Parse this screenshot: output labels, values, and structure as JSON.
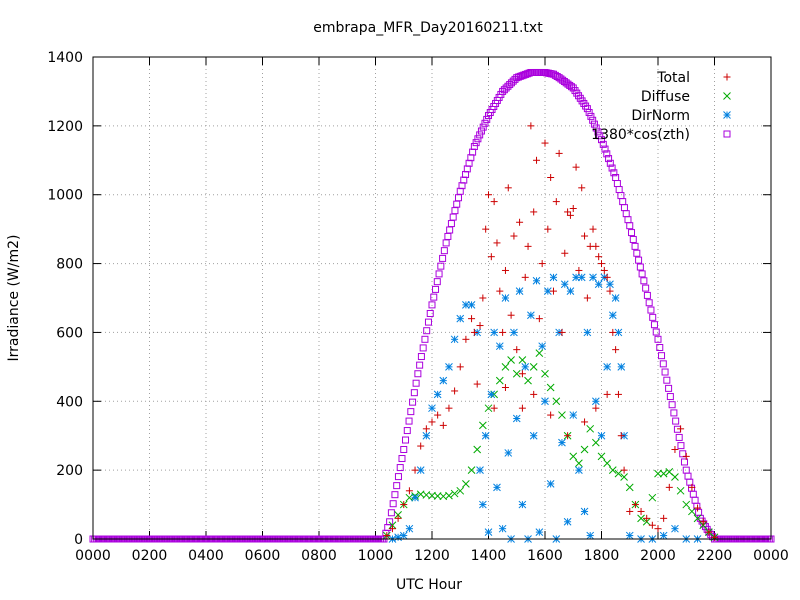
{
  "chart_data": {
    "type": "scatter",
    "title": "embrapa_MFR_Day20160211.txt",
    "xlabel": "UTC Hour",
    "ylabel": "Irradiance (W/m2)",
    "xlim": [
      0,
      24
    ],
    "ylim": [
      0,
      1400
    ],
    "x_ticks": [
      {
        "value": 0,
        "label": "0000"
      },
      {
        "value": 2,
        "label": "0200"
      },
      {
        "value": 4,
        "label": "0400"
      },
      {
        "value": 6,
        "label": "0600"
      },
      {
        "value": 8,
        "label": "0800"
      },
      {
        "value": 10,
        "label": "1000"
      },
      {
        "value": 12,
        "label": "1200"
      },
      {
        "value": 14,
        "label": "1400"
      },
      {
        "value": 16,
        "label": "1600"
      },
      {
        "value": 18,
        "label": "1800"
      },
      {
        "value": 20,
        "label": "2000"
      },
      {
        "value": 22,
        "label": "2200"
      },
      {
        "value": 24,
        "label": "0000"
      }
    ],
    "y_ticks": [
      {
        "value": 0,
        "label": "0"
      },
      {
        "value": 200,
        "label": "200"
      },
      {
        "value": 400,
        "label": "400"
      },
      {
        "value": 600,
        "label": "600"
      },
      {
        "value": 800,
        "label": "800"
      },
      {
        "value": 1000,
        "label": "1000"
      },
      {
        "value": 1200,
        "label": "1200"
      },
      {
        "value": 1400,
        "label": "1400"
      }
    ],
    "grid": true,
    "legend_position": "top-right",
    "series": [
      {
        "name": "Total",
        "marker": "plus",
        "color": "#cc0000",
        "points": [
          [
            10.4,
            10
          ],
          [
            10.6,
            30
          ],
          [
            10.8,
            60
          ],
          [
            11.0,
            100
          ],
          [
            11.2,
            140
          ],
          [
            11.4,
            200
          ],
          [
            11.6,
            270
          ],
          [
            11.8,
            320
          ],
          [
            12.0,
            340
          ],
          [
            12.2,
            360
          ],
          [
            12.4,
            330
          ],
          [
            12.6,
            380
          ],
          [
            12.8,
            430
          ],
          [
            13.0,
            500
          ],
          [
            13.2,
            580
          ],
          [
            13.4,
            640
          ],
          [
            13.5,
            600
          ],
          [
            13.6,
            450
          ],
          [
            13.7,
            620
          ],
          [
            13.8,
            700
          ],
          [
            13.9,
            900
          ],
          [
            14.0,
            1000
          ],
          [
            14.1,
            820
          ],
          [
            14.2,
            980
          ],
          [
            14.3,
            860
          ],
          [
            14.4,
            720
          ],
          [
            14.5,
            600
          ],
          [
            14.6,
            780
          ],
          [
            14.7,
            1020
          ],
          [
            14.8,
            650
          ],
          [
            14.9,
            880
          ],
          [
            15.0,
            550
          ],
          [
            15.1,
            920
          ],
          [
            15.2,
            480
          ],
          [
            15.3,
            760
          ],
          [
            15.4,
            850
          ],
          [
            15.5,
            1200
          ],
          [
            15.6,
            950
          ],
          [
            15.7,
            1100
          ],
          [
            15.8,
            640
          ],
          [
            15.9,
            800
          ],
          [
            16.0,
            1150
          ],
          [
            16.1,
            900
          ],
          [
            16.2,
            1050
          ],
          [
            16.3,
            720
          ],
          [
            16.4,
            980
          ],
          [
            16.5,
            1120
          ],
          [
            16.6,
            600
          ],
          [
            16.7,
            830
          ],
          [
            16.8,
            950
          ],
          [
            16.9,
            940
          ],
          [
            17.0,
            960
          ],
          [
            17.1,
            1080
          ],
          [
            17.2,
            780
          ],
          [
            17.3,
            1020
          ],
          [
            17.4,
            880
          ],
          [
            17.5,
            700
          ],
          [
            17.6,
            850
          ],
          [
            17.7,
            900
          ],
          [
            17.8,
            850
          ],
          [
            17.9,
            820
          ],
          [
            18.0,
            800
          ],
          [
            18.1,
            780
          ],
          [
            18.2,
            760
          ],
          [
            18.3,
            720
          ],
          [
            18.4,
            600
          ],
          [
            18.5,
            550
          ],
          [
            18.6,
            420
          ],
          [
            18.7,
            300
          ],
          [
            18.8,
            200
          ],
          [
            19.0,
            80
          ],
          [
            19.2,
            100
          ],
          [
            19.4,
            80
          ],
          [
            19.6,
            60
          ],
          [
            19.8,
            40
          ],
          [
            20.0,
            30
          ],
          [
            20.2,
            60
          ],
          [
            20.4,
            150
          ],
          [
            20.6,
            260
          ],
          [
            20.8,
            320
          ],
          [
            21.0,
            240
          ],
          [
            21.2,
            150
          ],
          [
            21.4,
            90
          ],
          [
            21.6,
            50
          ],
          [
            21.8,
            20
          ],
          [
            22.0,
            5
          ],
          [
            14.2,
            380
          ],
          [
            14.6,
            440
          ],
          [
            15.2,
            380
          ],
          [
            15.6,
            420
          ],
          [
            16.2,
            360
          ],
          [
            16.8,
            300
          ],
          [
            17.4,
            340
          ],
          [
            17.8,
            380
          ],
          [
            18.2,
            420
          ]
        ]
      },
      {
        "name": "Diffuse",
        "marker": "cross",
        "color": "#00aa00",
        "points": [
          [
            10.4,
            10
          ],
          [
            10.6,
            40
          ],
          [
            10.8,
            70
          ],
          [
            11.0,
            100
          ],
          [
            11.2,
            120
          ],
          [
            11.4,
            125
          ],
          [
            11.6,
            130
          ],
          [
            11.8,
            128
          ],
          [
            12.0,
            126
          ],
          [
            12.2,
            125
          ],
          [
            12.4,
            124
          ],
          [
            12.6,
            126
          ],
          [
            12.8,
            132
          ],
          [
            13.0,
            140
          ],
          [
            13.2,
            160
          ],
          [
            13.4,
            200
          ],
          [
            13.6,
            260
          ],
          [
            13.8,
            330
          ],
          [
            14.0,
            380
          ],
          [
            14.2,
            420
          ],
          [
            14.4,
            460
          ],
          [
            14.6,
            500
          ],
          [
            14.8,
            520
          ],
          [
            15.0,
            480
          ],
          [
            15.2,
            520
          ],
          [
            15.4,
            460
          ],
          [
            15.6,
            500
          ],
          [
            15.8,
            540
          ],
          [
            16.0,
            480
          ],
          [
            16.2,
            440
          ],
          [
            16.4,
            400
          ],
          [
            16.6,
            360
          ],
          [
            16.8,
            300
          ],
          [
            17.0,
            240
          ],
          [
            17.2,
            220
          ],
          [
            17.4,
            260
          ],
          [
            17.6,
            320
          ],
          [
            17.8,
            280
          ],
          [
            18.0,
            240
          ],
          [
            18.2,
            220
          ],
          [
            18.4,
            200
          ],
          [
            18.6,
            190
          ],
          [
            18.8,
            180
          ],
          [
            19.0,
            150
          ],
          [
            19.2,
            100
          ],
          [
            19.4,
            60
          ],
          [
            19.6,
            50
          ],
          [
            19.8,
            120
          ],
          [
            20.0,
            190
          ],
          [
            20.2,
            190
          ],
          [
            20.4,
            195
          ],
          [
            20.6,
            180
          ],
          [
            20.8,
            140
          ],
          [
            21.0,
            100
          ],
          [
            21.2,
            80
          ],
          [
            21.4,
            60
          ],
          [
            21.6,
            40
          ],
          [
            21.8,
            20
          ],
          [
            22.0,
            5
          ]
        ]
      },
      {
        "name": "DirNorm",
        "marker": "star",
        "color": "#0080e0",
        "points": [
          [
            10.6,
            0
          ],
          [
            10.8,
            5
          ],
          [
            11.0,
            10
          ],
          [
            11.2,
            30
          ],
          [
            11.4,
            120
          ],
          [
            11.6,
            200
          ],
          [
            11.8,
            300
          ],
          [
            12.0,
            380
          ],
          [
            12.2,
            420
          ],
          [
            12.4,
            460
          ],
          [
            12.6,
            500
          ],
          [
            12.8,
            580
          ],
          [
            13.0,
            640
          ],
          [
            13.2,
            680
          ],
          [
            13.4,
            680
          ],
          [
            13.6,
            600
          ],
          [
            13.7,
            200
          ],
          [
            13.8,
            100
          ],
          [
            13.9,
            300
          ],
          [
            14.0,
            20
          ],
          [
            14.1,
            420
          ],
          [
            14.2,
            600
          ],
          [
            14.3,
            150
          ],
          [
            14.4,
            560
          ],
          [
            14.5,
            30
          ],
          [
            14.6,
            700
          ],
          [
            14.7,
            250
          ],
          [
            14.8,
            0
          ],
          [
            14.9,
            600
          ],
          [
            15.0,
            350
          ],
          [
            15.1,
            720
          ],
          [
            15.2,
            100
          ],
          [
            15.3,
            500
          ],
          [
            15.4,
            0
          ],
          [
            15.5,
            650
          ],
          [
            15.6,
            300
          ],
          [
            15.7,
            750
          ],
          [
            15.8,
            20
          ],
          [
            15.9,
            560
          ],
          [
            16.0,
            400
          ],
          [
            16.1,
            720
          ],
          [
            16.2,
            160
          ],
          [
            16.3,
            760
          ],
          [
            16.4,
            0
          ],
          [
            16.5,
            600
          ],
          [
            16.6,
            280
          ],
          [
            16.7,
            740
          ],
          [
            16.8,
            50
          ],
          [
            16.9,
            720
          ],
          [
            17.0,
            360
          ],
          [
            17.1,
            760
          ],
          [
            17.2,
            200
          ],
          [
            17.3,
            760
          ],
          [
            17.4,
            80
          ],
          [
            17.5,
            600
          ],
          [
            17.6,
            10
          ],
          [
            17.7,
            760
          ],
          [
            17.8,
            400
          ],
          [
            17.9,
            740
          ],
          [
            18.0,
            300
          ],
          [
            18.1,
            760
          ],
          [
            18.2,
            500
          ],
          [
            18.3,
            740
          ],
          [
            18.4,
            650
          ],
          [
            18.5,
            700
          ],
          [
            18.6,
            600
          ],
          [
            18.7,
            500
          ],
          [
            18.8,
            300
          ],
          [
            19.0,
            10
          ],
          [
            19.4,
            0
          ],
          [
            19.8,
            0
          ],
          [
            20.2,
            10
          ],
          [
            20.6,
            30
          ],
          [
            21.0,
            0
          ],
          [
            21.4,
            0
          ]
        ]
      },
      {
        "name": "1380*cos(zth)",
        "marker": "square",
        "color": "#aa00dd",
        "points": [
          [
            0,
            0
          ],
          [
            1,
            0
          ],
          [
            2,
            0
          ],
          [
            3,
            0
          ],
          [
            4,
            0
          ],
          [
            5,
            0
          ],
          [
            6,
            0
          ],
          [
            7,
            0
          ],
          [
            8,
            0
          ],
          [
            9,
            0
          ],
          [
            10,
            0
          ],
          [
            10.3,
            0
          ],
          [
            10.5,
            50
          ],
          [
            11.0,
            260
          ],
          [
            11.5,
            480
          ],
          [
            12.0,
            680
          ],
          [
            12.5,
            860
          ],
          [
            13.0,
            1010
          ],
          [
            13.5,
            1140
          ],
          [
            14.0,
            1230
          ],
          [
            14.5,
            1300
          ],
          [
            15.0,
            1340
          ],
          [
            15.5,
            1355
          ],
          [
            16.0,
            1355
          ],
          [
            16.3,
            1350
          ],
          [
            16.5,
            1340
          ],
          [
            17.0,
            1310
          ],
          [
            17.5,
            1250
          ],
          [
            18.0,
            1160
          ],
          [
            18.5,
            1050
          ],
          [
            19.0,
            910
          ],
          [
            19.5,
            750
          ],
          [
            20.0,
            580
          ],
          [
            20.5,
            390
          ],
          [
            21.0,
            200
          ],
          [
            21.5,
            60
          ],
          [
            21.8,
            20
          ],
          [
            22.0,
            0
          ],
          [
            22.5,
            0
          ],
          [
            23,
            0
          ],
          [
            24,
            0
          ]
        ]
      }
    ]
  }
}
